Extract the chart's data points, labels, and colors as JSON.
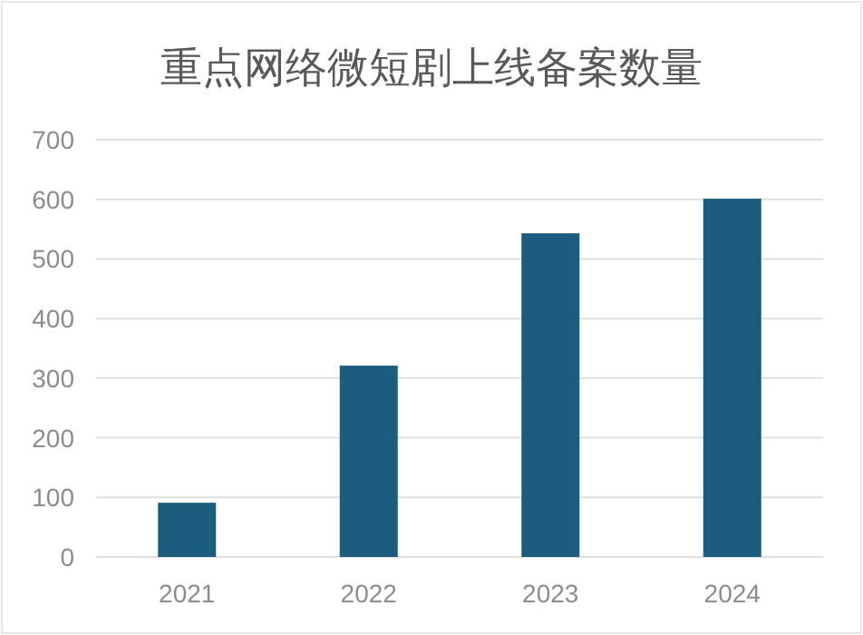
{
  "chart_data": {
    "type": "bar",
    "title": "重点网络微短剧上线备案数量",
    "categories": [
      "2021",
      "2022",
      "2023",
      "2024"
    ],
    "values": [
      91,
      321,
      543,
      601
    ],
    "color": "#1c5d7f",
    "ylim": [
      0,
      700
    ],
    "yticks": [
      0,
      100,
      200,
      300,
      400,
      500,
      600,
      700
    ],
    "grid": "y"
  }
}
